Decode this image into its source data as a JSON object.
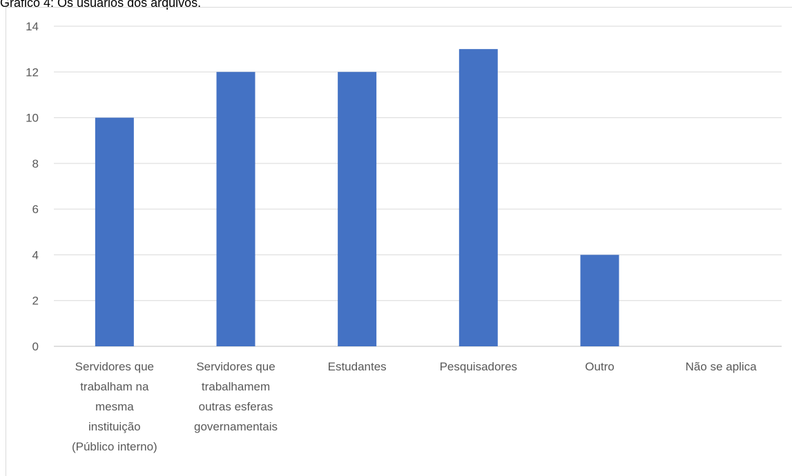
{
  "caption": "Gráfico 4: Os usuários dos arquivos.",
  "colors": {
    "bar": "#4472c4",
    "grid": "#d9d9d9",
    "axis": "#bfbfbf",
    "text": "#595959"
  },
  "chart_data": {
    "type": "bar",
    "title": "",
    "xlabel": "",
    "ylabel": "",
    "ylim": [
      0,
      14
    ],
    "yticks": [
      "0",
      "2",
      "4",
      "6",
      "8",
      "10",
      "12",
      "14"
    ],
    "grid": true,
    "categories": [
      "Servidores que trabalham na mesma instituição (Público interno)",
      "Servidores que trabalhamem outras esferas governamentais",
      "Estudantes",
      "Pesquisadores",
      "Outro",
      "Não se aplica"
    ],
    "category_lines": [
      [
        "Servidores que",
        "trabalham na",
        "mesma",
        "instituição",
        "(Público interno)"
      ],
      [
        "Servidores que",
        "trabalhamem",
        "outras esferas",
        "governamentais"
      ],
      [
        "Estudantes"
      ],
      [
        "Pesquisadores"
      ],
      [
        "Outro"
      ],
      [
        "Não se aplica"
      ]
    ],
    "values": [
      10,
      12,
      12,
      13,
      4,
      0
    ]
  }
}
